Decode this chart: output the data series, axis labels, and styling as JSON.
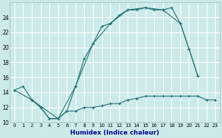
{
  "bg_color": "#cceaea",
  "grid_color": "#ffffff",
  "line_color": "#1a6e6e",
  "xlabel": "Humidex (Indice chaleur)",
  "ylim": [
    10,
    26
  ],
  "xlim": [
    -0.5,
    23.5
  ],
  "yticks": [
    10,
    12,
    14,
    16,
    18,
    20,
    22,
    24
  ],
  "xticks": [
    0,
    1,
    2,
    3,
    4,
    5,
    6,
    7,
    8,
    9,
    10,
    11,
    12,
    13,
    14,
    15,
    16,
    17,
    18,
    19,
    20,
    21,
    22,
    23
  ],
  "line1_x": [
    0,
    1,
    2,
    3,
    4,
    5,
    6,
    7,
    8,
    9,
    10,
    11,
    12,
    13,
    14,
    15,
    16,
    17,
    18,
    19,
    20,
    21
  ],
  "line1_y": [
    14.3,
    14.8,
    13.0,
    12.0,
    10.5,
    10.5,
    11.5,
    14.8,
    18.5,
    20.5,
    22.8,
    23.2,
    24.3,
    25.0,
    25.0,
    25.3,
    25.0,
    25.0,
    25.3,
    23.2,
    19.8,
    16.2
  ],
  "line2_x": [
    2,
    3,
    4,
    5,
    6,
    7,
    8,
    9,
    10,
    11,
    12,
    13,
    14,
    15,
    16,
    17,
    18,
    19,
    20,
    21,
    22,
    23
  ],
  "line2_y": [
    13.0,
    12.0,
    10.5,
    10.5,
    11.5,
    11.5,
    12.0,
    12.0,
    12.2,
    12.5,
    12.5,
    13.0,
    13.2,
    13.5,
    13.5,
    13.5,
    13.5,
    13.5,
    13.5,
    13.5,
    13.0,
    13.0
  ],
  "line3_x": [
    0,
    2,
    5,
    7,
    9,
    11,
    13,
    15,
    17,
    19,
    20,
    21
  ],
  "line3_y": [
    14.3,
    13.0,
    10.5,
    14.8,
    20.5,
    23.2,
    25.0,
    25.3,
    25.0,
    23.2,
    19.8,
    16.2
  ]
}
